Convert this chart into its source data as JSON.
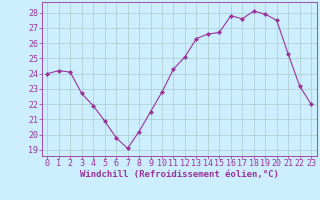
{
  "x": [
    0,
    1,
    2,
    3,
    4,
    5,
    6,
    7,
    8,
    9,
    10,
    11,
    12,
    13,
    14,
    15,
    16,
    17,
    18,
    19,
    20,
    21,
    22,
    23
  ],
  "y": [
    24.0,
    24.2,
    24.1,
    22.7,
    21.9,
    20.9,
    19.8,
    19.1,
    20.2,
    21.5,
    22.8,
    24.3,
    25.1,
    26.3,
    26.6,
    26.7,
    27.8,
    27.6,
    28.1,
    27.9,
    27.5,
    25.3,
    23.2,
    22.0
  ],
  "line_color": "#993399",
  "marker": "D",
  "marker_size": 2.0,
  "bg_color": "#cceeff",
  "grid_color": "#aacccc",
  "xlabel": "Windchill (Refroidissement éolien,°C)",
  "ylabel_ticks": [
    19,
    20,
    21,
    22,
    23,
    24,
    25,
    26,
    27,
    28
  ],
  "ylim": [
    18.6,
    28.7
  ],
  "xlim": [
    -0.5,
    23.5
  ],
  "tick_fontsize": 6.0,
  "xlabel_fontsize": 6.5
}
